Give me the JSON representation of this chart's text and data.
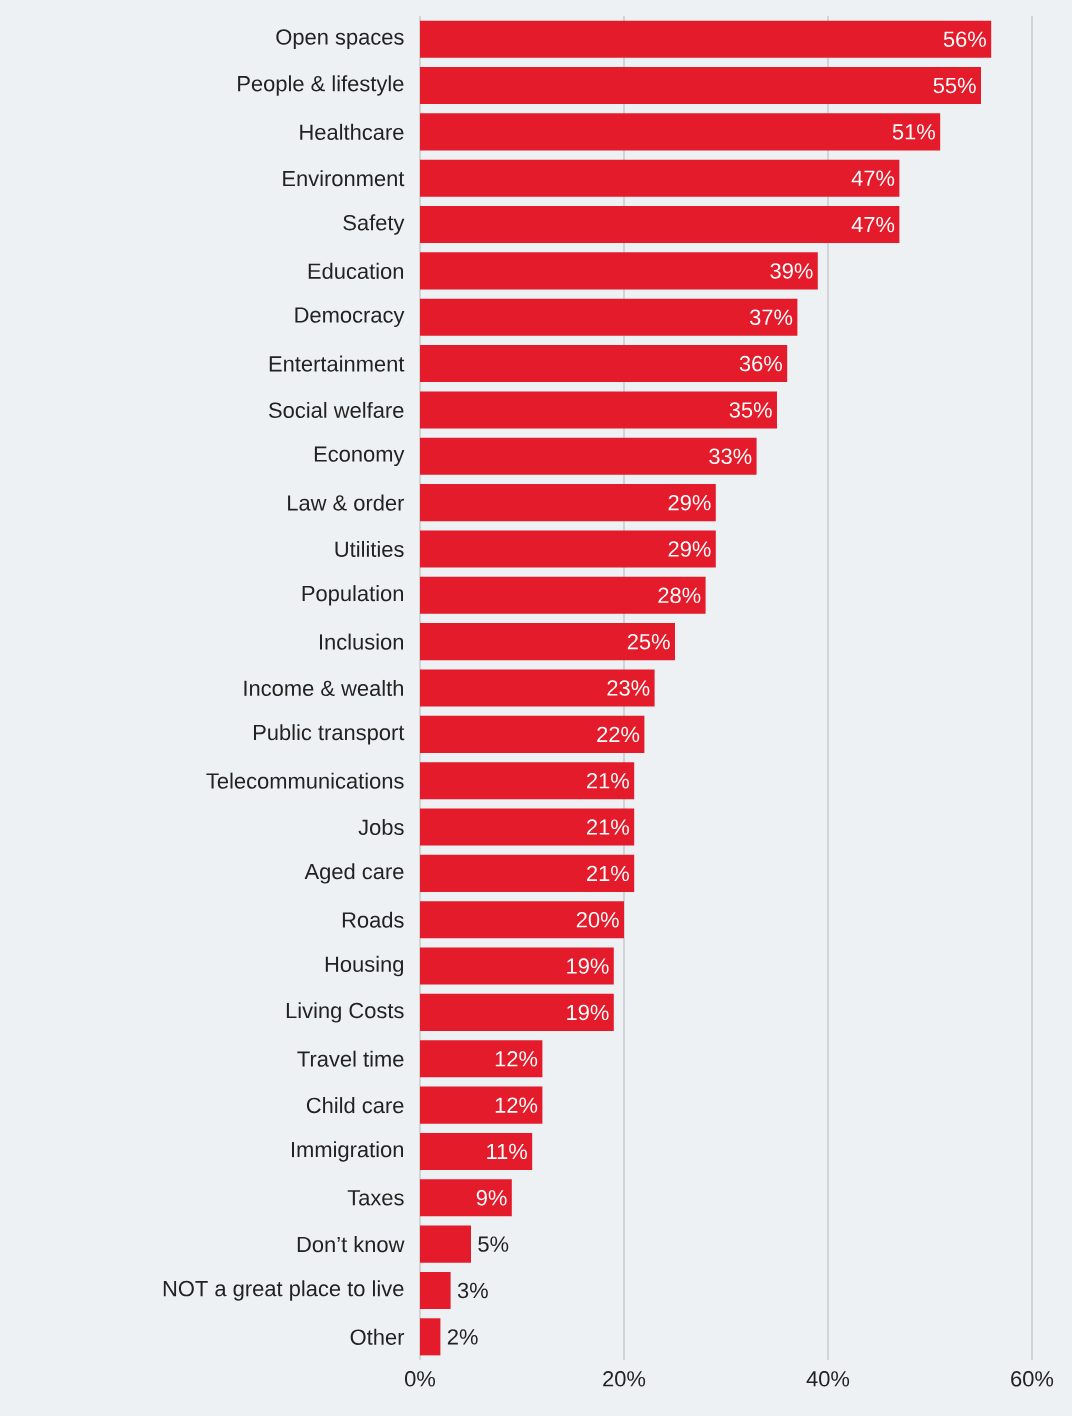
{
  "chart_data": {
    "type": "bar",
    "orientation": "horizontal",
    "categories": [
      "Open spaces",
      "People & lifestyle",
      "Healthcare",
      "Environment",
      "Safety",
      "Education",
      "Democracy",
      "Entertainment",
      "Social welfare",
      "Economy",
      "Law & order",
      "Utilities",
      "Population",
      "Inclusion",
      "Income & wealth",
      "Public transport",
      "Telecommunications",
      "Jobs",
      "Aged care",
      "Roads",
      "Housing",
      "Living Costs",
      "Travel time",
      "Child care",
      "Immigration",
      "Taxes",
      "Don’t know",
      "NOT a great place to live",
      "Other"
    ],
    "values": [
      56,
      55,
      51,
      47,
      47,
      39,
      37,
      36,
      35,
      33,
      29,
      29,
      28,
      25,
      23,
      22,
      21,
      21,
      21,
      20,
      19,
      19,
      12,
      12,
      11,
      9,
      5,
      3,
      2
    ],
    "value_labels": [
      "56%",
      "55%",
      "51%",
      "47%",
      "47%",
      "39%",
      "37%",
      "36%",
      "35%",
      "33%",
      "29%",
      "29%",
      "28%",
      "25%",
      "23%",
      "22%",
      "21%",
      "21%",
      "21%",
      "20%",
      "19%",
      "19%",
      "12%",
      "12%",
      "11%",
      "9%",
      "5%",
      "3%",
      "2%"
    ],
    "color": "#e31b2a",
    "xlim": [
      0,
      60
    ],
    "xticks": [
      {
        "value": 0,
        "label": "0%"
      },
      {
        "value": 20,
        "label": "20%"
      },
      {
        "value": 40,
        "label": "40%"
      },
      {
        "value": 60,
        "label": "60%"
      }
    ],
    "grid": "x"
  }
}
